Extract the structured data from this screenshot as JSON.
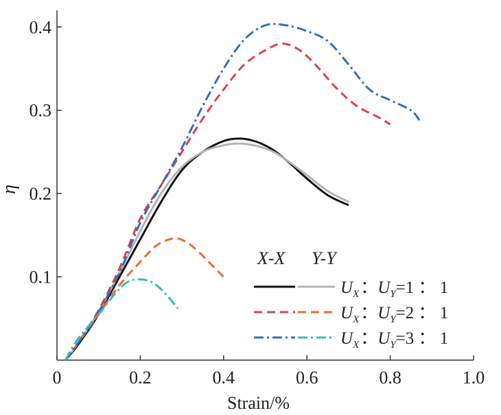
{
  "chart_data": {
    "type": "line",
    "title": "",
    "xlabel": "Strain/%",
    "ylabel": "η",
    "xlim": [
      0,
      1.0
    ],
    "ylim": [
      0,
      0.42
    ],
    "x_ticks": [
      0,
      0.2,
      0.4,
      0.6,
      0.8,
      1.0
    ],
    "x_tick_labels": [
      "0",
      "0.2",
      "0.4",
      "0.6",
      "0.8",
      "1.0"
    ],
    "y_ticks": [
      0.1,
      0.2,
      0.3,
      0.4
    ],
    "y_tick_labels": [
      "0.1",
      "0.2",
      "0.3",
      "0.4"
    ],
    "grid": false,
    "legend_position": "bottom-right",
    "legend_headers": [
      "X-X",
      "Y-Y"
    ],
    "legend": [
      {
        "ratio_left": "U",
        "sub_left": "X",
        "sep": "：",
        "ratio_right": "U",
        "sub_right": "Y",
        "value": "=1 ： 1"
      },
      {
        "ratio_left": "U",
        "sub_left": "X",
        "sep": "：",
        "ratio_right": "U",
        "sub_right": "Y",
        "value": "=2 ： 1"
      },
      {
        "ratio_left": "U",
        "sub_left": "X",
        "sep": "：",
        "ratio_right": "U",
        "sub_right": "Y",
        "value": "=3 ： 1"
      }
    ],
    "series": [
      {
        "name": "X-X 1:1",
        "color": "#111111",
        "dash": "solid",
        "width": 3,
        "x": [
          0.02,
          0.05,
          0.1,
          0.15,
          0.2,
          0.25,
          0.3,
          0.35,
          0.4,
          0.44,
          0.48,
          0.52,
          0.56,
          0.6,
          0.65,
          0.7
        ],
        "y": [
          0.0,
          0.018,
          0.055,
          0.1,
          0.145,
          0.19,
          0.228,
          0.25,
          0.263,
          0.266,
          0.262,
          0.252,
          0.236,
          0.218,
          0.198,
          0.186
        ]
      },
      {
        "name": "Y-Y 1:1",
        "color": "#b3b3b3",
        "dash": "solid",
        "width": 3,
        "x": [
          0.02,
          0.05,
          0.1,
          0.15,
          0.2,
          0.25,
          0.3,
          0.35,
          0.4,
          0.44,
          0.48,
          0.52,
          0.56,
          0.6,
          0.65,
          0.7
        ],
        "y": [
          0.0,
          0.02,
          0.058,
          0.105,
          0.155,
          0.2,
          0.232,
          0.25,
          0.258,
          0.26,
          0.257,
          0.25,
          0.237,
          0.222,
          0.203,
          0.19
        ]
      },
      {
        "name": "X-X 2:1",
        "color": "#e0404a",
        "dash": "12,7",
        "width": 3,
        "x": [
          0.02,
          0.05,
          0.1,
          0.15,
          0.2,
          0.25,
          0.3,
          0.35,
          0.4,
          0.45,
          0.5,
          0.54,
          0.58,
          0.62,
          0.67,
          0.72,
          0.77,
          0.8
        ],
        "y": [
          0.0,
          0.02,
          0.06,
          0.11,
          0.17,
          0.21,
          0.25,
          0.29,
          0.325,
          0.355,
          0.372,
          0.38,
          0.373,
          0.355,
          0.327,
          0.305,
          0.292,
          0.283
        ]
      },
      {
        "name": "Y-Y 2:1",
        "color": "#f26b2d",
        "dash": "12,7",
        "width": 3,
        "x": [
          0.02,
          0.05,
          0.1,
          0.15,
          0.2,
          0.24,
          0.28,
          0.31,
          0.34,
          0.37,
          0.4
        ],
        "y": [
          0.0,
          0.02,
          0.055,
          0.09,
          0.118,
          0.138,
          0.146,
          0.142,
          0.13,
          0.115,
          0.1
        ]
      },
      {
        "name": "X-X 3:1",
        "color": "#2e6fc0",
        "dash": "14,5,3,5",
        "width": 3,
        "x": [
          0.02,
          0.05,
          0.1,
          0.15,
          0.2,
          0.25,
          0.3,
          0.35,
          0.4,
          0.45,
          0.5,
          0.55,
          0.6,
          0.65,
          0.7,
          0.75,
          0.8,
          0.85,
          0.87
        ],
        "y": [
          0.0,
          0.02,
          0.058,
          0.105,
          0.165,
          0.21,
          0.255,
          0.305,
          0.35,
          0.385,
          0.402,
          0.402,
          0.395,
          0.383,
          0.355,
          0.325,
          0.312,
          0.3,
          0.288
        ]
      },
      {
        "name": "Y-Y 3:1",
        "color": "#33bcc4",
        "dash": "14,5,3,5",
        "width": 3,
        "x": [
          0.02,
          0.05,
          0.1,
          0.14,
          0.17,
          0.2,
          0.23,
          0.26,
          0.29
        ],
        "y": [
          0.0,
          0.025,
          0.055,
          0.08,
          0.094,
          0.097,
          0.093,
          0.08,
          0.062
        ]
      }
    ]
  }
}
